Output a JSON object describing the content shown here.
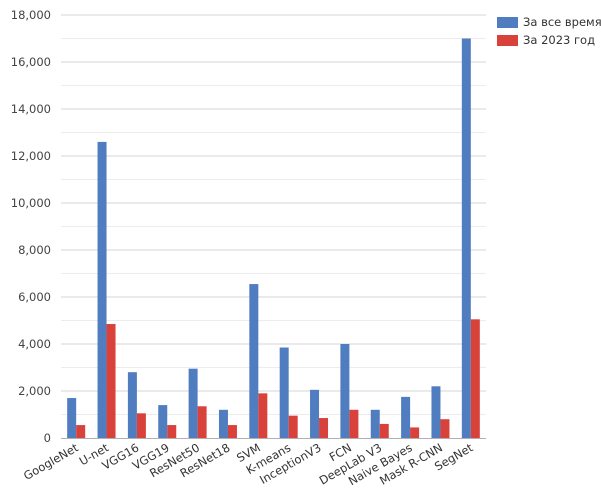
{
  "chart_data": {
    "type": "bar",
    "title": "",
    "xlabel": "",
    "ylabel": "",
    "ylim": [
      0,
      18000
    ],
    "yticks": [
      "0",
      "2,000",
      "4,000",
      "6,000",
      "8,000",
      "10,000",
      "12,000",
      "14,000",
      "16,000",
      "18,000"
    ],
    "grid": true,
    "legend_position": "top-right",
    "categories": [
      "GoogleNet",
      "U-net",
      "VGG16",
      "VGG19",
      "ResNet50",
      "ResNet18",
      "SVM",
      "K-means",
      "InceptionV3",
      "FCN",
      "DeepLab V3",
      "Naive Bayes",
      "Mask R-CNN",
      "SegNet"
    ],
    "series": [
      {
        "name": "За все время",
        "color": "#4f7dc0",
        "values": [
          1700,
          12600,
          2800,
          1400,
          2950,
          1200,
          6550,
          3850,
          2050,
          4000,
          1200,
          1750,
          2200,
          17000
        ]
      },
      {
        "name": "За 2023 год",
        "color": "#d9423b",
        "values": [
          550,
          4850,
          1050,
          550,
          1350,
          550,
          1900,
          950,
          850,
          1200,
          600,
          450,
          800,
          5050
        ]
      }
    ]
  }
}
